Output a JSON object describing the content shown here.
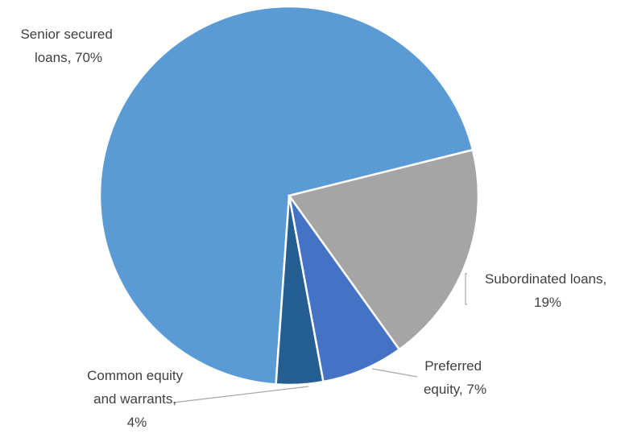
{
  "chart_data": {
    "type": "pie",
    "values": [
      70,
      19,
      7,
      4
    ],
    "value_labels": [
      "Senior secured loans, 70%",
      "Subordinated loans, 19%",
      "Preferred equity, 7%",
      "Common equity and warrants, 4%"
    ],
    "colors": [
      "#5b9bd5",
      "#a5a5a5",
      "#4472c4",
      "#255e91"
    ]
  }
}
